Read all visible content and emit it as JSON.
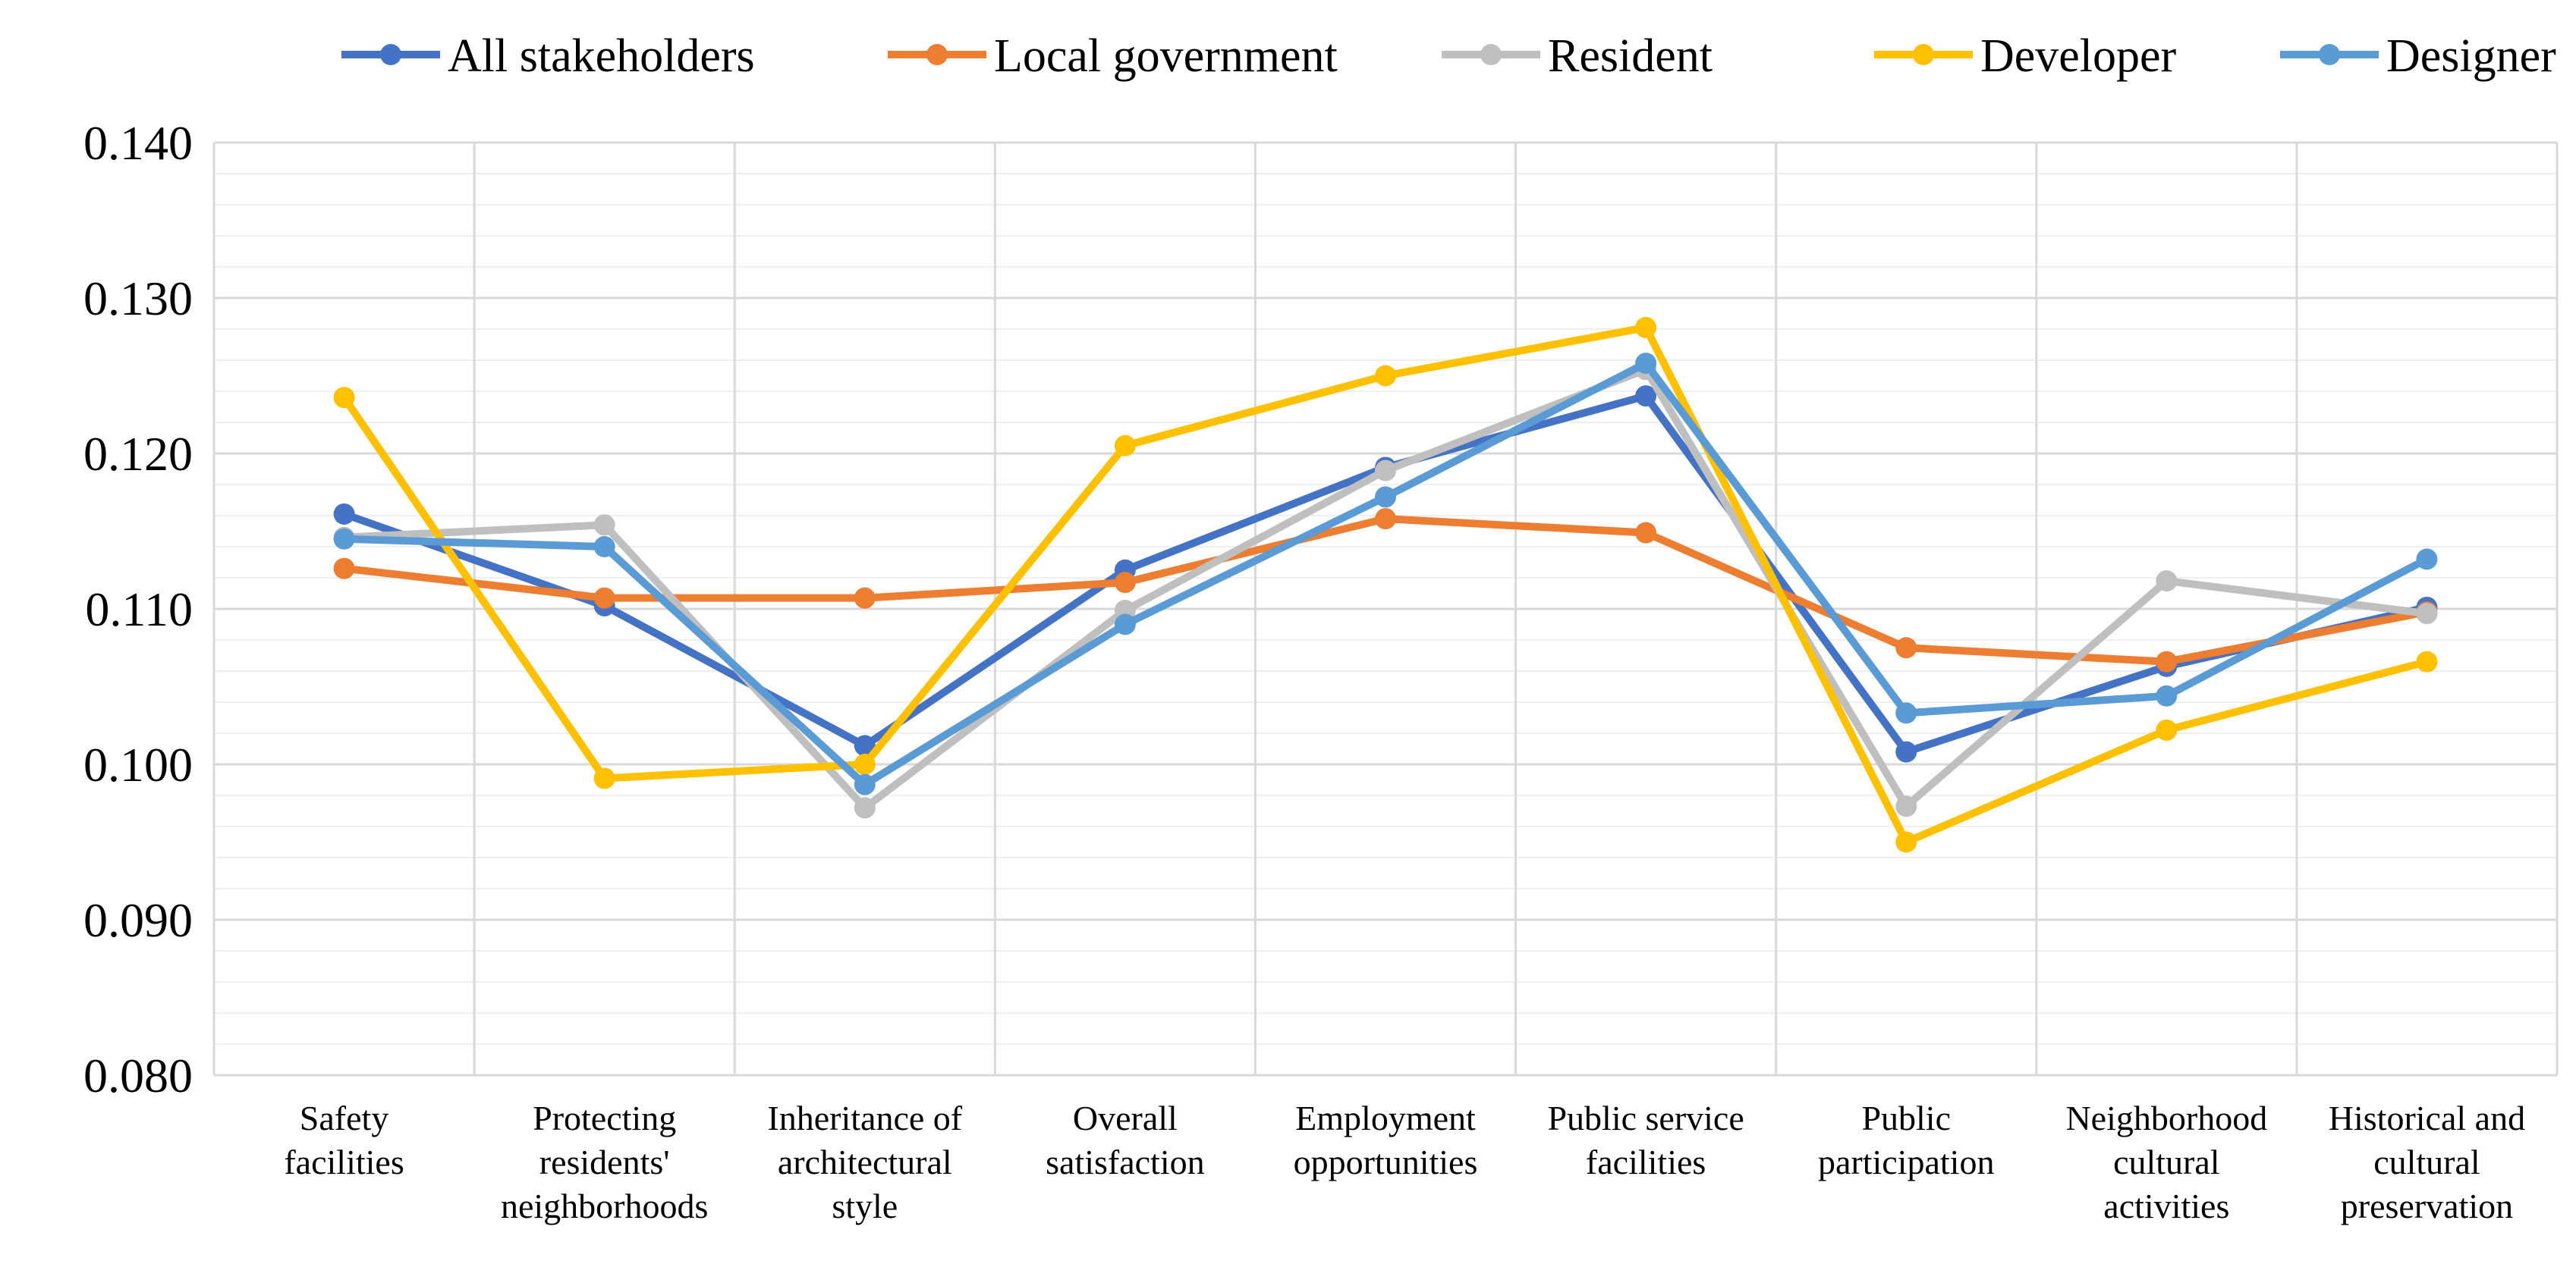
{
  "chart_data": {
    "type": "line",
    "title": "",
    "xlabel": "",
    "ylabel": "",
    "ylim": [
      0.08,
      0.14
    ],
    "ytick_step": 0.01,
    "ytick_labels": [
      "0.080",
      "0.090",
      "0.100",
      "0.110",
      "0.120",
      "0.130",
      "0.140"
    ],
    "grid": true,
    "legend_position": "top",
    "categories": [
      [
        "Safety",
        "facilities"
      ],
      [
        "Protecting",
        "residents'",
        "neighborhoods"
      ],
      [
        "Inheritance of",
        "architectural",
        "style"
      ],
      [
        "Overall",
        "satisfaction"
      ],
      [
        "Employment",
        "opportunities"
      ],
      [
        "Public service",
        "facilities"
      ],
      [
        "Public",
        "participation"
      ],
      [
        "Neighborhood",
        "cultural",
        "activities"
      ],
      [
        "Historical and",
        "cultural",
        "preservation"
      ]
    ],
    "series": [
      {
        "name": "All stakeholders",
        "color": "#4472C4",
        "values": [
          0.1161,
          0.1102,
          0.1012,
          0.1125,
          0.1191,
          0.1237,
          0.1008,
          0.1063,
          0.1101
        ]
      },
      {
        "name": "Local government",
        "color": "#ED7D31",
        "values": [
          0.1126,
          0.1107,
          0.1107,
          0.1117,
          0.1158,
          0.1149,
          0.1075,
          0.1066,
          0.1098
        ]
      },
      {
        "name": "Resident",
        "color": "#BFBFBF",
        "values": [
          0.1146,
          0.1154,
          0.0972,
          0.1099,
          0.1189,
          0.1254,
          0.0973,
          0.1118,
          0.1097
        ]
      },
      {
        "name": "Developer",
        "color": "#FFC000",
        "values": [
          0.1236,
          0.0991,
          0.1,
          0.1205,
          0.125,
          0.1281,
          0.095,
          0.1022,
          0.1066
        ]
      },
      {
        "name": "Designer",
        "color": "#5B9BD5",
        "values": [
          0.1145,
          0.114,
          0.0987,
          0.109,
          0.1172,
          0.1258,
          0.1033,
          0.1044,
          0.1132
        ]
      }
    ]
  }
}
